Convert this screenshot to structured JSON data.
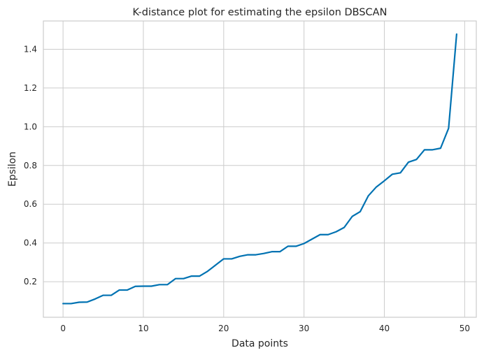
{
  "chart_data": {
    "type": "line",
    "title": "K-distance plot for estimating the epsilon DBSCAN",
    "xlabel": "Data points",
    "ylabel": "Epsilon",
    "xlim": [
      -2.45,
      51.45
    ],
    "ylim": [
      0.0165,
      1.546
    ],
    "xticks": [
      0,
      10,
      20,
      30,
      40,
      50
    ],
    "yticks": [
      0.2,
      0.4,
      0.6,
      0.8,
      1.0,
      1.2,
      1.4
    ],
    "xtick_labels": [
      "0",
      "10",
      "20",
      "30",
      "40",
      "50"
    ],
    "ytick_labels": [
      "0.2",
      "0.4",
      "0.6",
      "0.8",
      "1.0",
      "1.2",
      "1.4"
    ],
    "grid": true,
    "color": "#0072b2",
    "x": [
      0,
      1,
      2,
      3,
      4,
      5,
      6,
      7,
      8,
      9,
      10,
      11,
      12,
      13,
      14,
      15,
      16,
      17,
      18,
      19,
      20,
      21,
      22,
      23,
      24,
      25,
      26,
      27,
      28,
      29,
      30,
      31,
      32,
      33,
      34,
      35,
      36,
      37,
      38,
      39,
      40,
      41,
      42,
      43,
      44,
      45,
      46,
      47,
      48,
      49
    ],
    "y": [
      0.087,
      0.087,
      0.094,
      0.095,
      0.111,
      0.13,
      0.13,
      0.157,
      0.157,
      0.176,
      0.177,
      0.177,
      0.185,
      0.185,
      0.216,
      0.216,
      0.229,
      0.229,
      0.254,
      0.286,
      0.318,
      0.318,
      0.331,
      0.339,
      0.339,
      0.346,
      0.355,
      0.355,
      0.383,
      0.383,
      0.397,
      0.42,
      0.443,
      0.443,
      0.458,
      0.48,
      0.537,
      0.562,
      0.643,
      0.689,
      0.721,
      0.755,
      0.762,
      0.817,
      0.831,
      0.881,
      0.881,
      0.889,
      0.992,
      1.478
    ]
  }
}
